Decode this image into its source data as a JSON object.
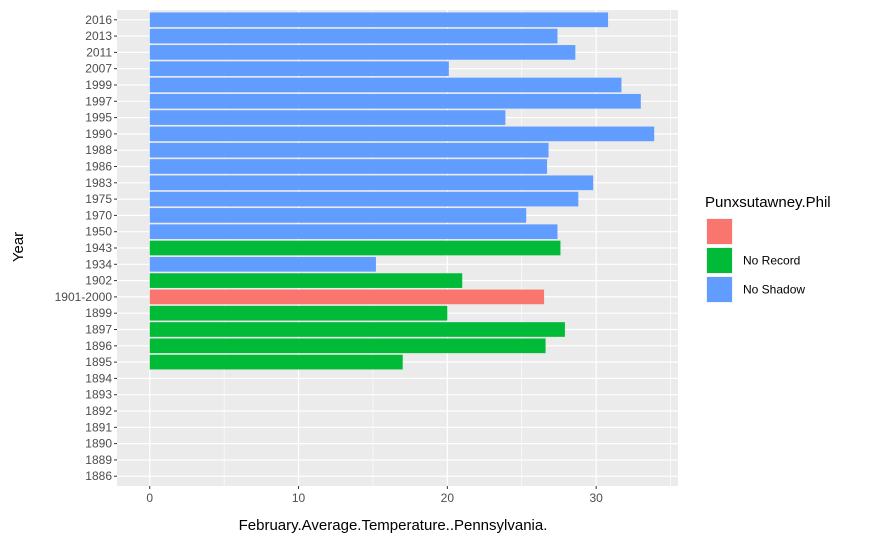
{
  "chart_data": {
    "type": "bar",
    "orientation": "horizontal",
    "xlabel": "February.Average.Temperature..Pennsylvania.",
    "ylabel": "Year",
    "xlim": [
      -2.2,
      35.5
    ],
    "xticks": [
      0,
      10,
      20,
      30
    ],
    "grid": true,
    "legend": {
      "title": "Punxsutawney.Phil",
      "position": "right",
      "entries": [
        {
          "key": "",
          "label": "",
          "color": "#F8766D"
        },
        {
          "key": "No Record",
          "label": "No Record",
          "color": "#00BA38"
        },
        {
          "key": "No Shadow",
          "label": "No Shadow",
          "color": "#619CFF"
        }
      ]
    },
    "categories": [
      "1886",
      "1889",
      "1890",
      "1891",
      "1892",
      "1893",
      "1894",
      "1895",
      "1896",
      "1897",
      "1899",
      "1901-2000",
      "1902",
      "1934",
      "1943",
      "1950",
      "1970",
      "1975",
      "1983",
      "1986",
      "1988",
      "1990",
      "1995",
      "1997",
      "1999",
      "2007",
      "2011",
      "2013",
      "2016"
    ],
    "bars": [
      {
        "category": "1895",
        "value": 17.0,
        "group": "No Record"
      },
      {
        "category": "1896",
        "value": 26.6,
        "group": "No Record"
      },
      {
        "category": "1897",
        "value": 27.9,
        "group": "No Record"
      },
      {
        "category": "1899",
        "value": 20.0,
        "group": "No Record"
      },
      {
        "category": "1901-2000",
        "value": 26.5,
        "group": ""
      },
      {
        "category": "1902",
        "value": 21.0,
        "group": "No Record"
      },
      {
        "category": "1934",
        "value": 15.2,
        "group": "No Shadow"
      },
      {
        "category": "1943",
        "value": 27.6,
        "group": "No Record"
      },
      {
        "category": "1950",
        "value": 27.4,
        "group": "No Shadow"
      },
      {
        "category": "1970",
        "value": 25.3,
        "group": "No Shadow"
      },
      {
        "category": "1975",
        "value": 28.8,
        "group": "No Shadow"
      },
      {
        "category": "1983",
        "value": 29.8,
        "group": "No Shadow"
      },
      {
        "category": "1986",
        "value": 26.7,
        "group": "No Shadow"
      },
      {
        "category": "1988",
        "value": 26.8,
        "group": "No Shadow"
      },
      {
        "category": "1990",
        "value": 33.9,
        "group": "No Shadow"
      },
      {
        "category": "1995",
        "value": 23.9,
        "group": "No Shadow"
      },
      {
        "category": "1997",
        "value": 33.0,
        "group": "No Shadow"
      },
      {
        "category": "1999",
        "value": 31.7,
        "group": "No Shadow"
      },
      {
        "category": "2007",
        "value": 20.1,
        "group": "No Shadow"
      },
      {
        "category": "2011",
        "value": 28.6,
        "group": "No Shadow"
      },
      {
        "category": "2013",
        "value": 27.4,
        "group": "No Shadow"
      },
      {
        "category": "2016",
        "value": 30.8,
        "group": "No Shadow"
      }
    ],
    "colors": {
      "panel_background": "#EBEBEB",
      "grid_major": "#FFFFFF",
      "tick_text": "#4D4D4D"
    }
  }
}
